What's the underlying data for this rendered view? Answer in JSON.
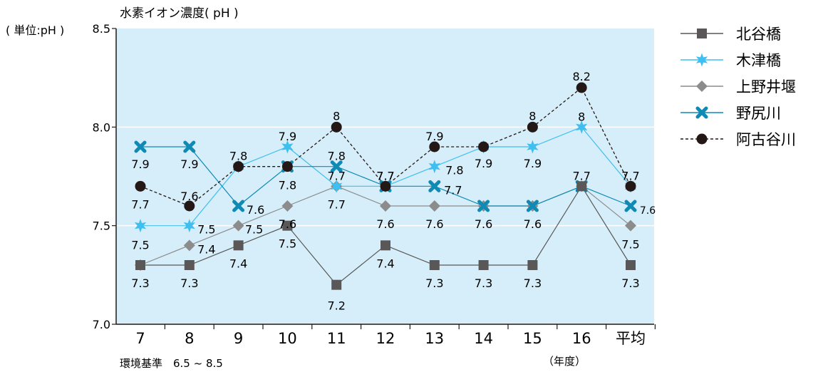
{
  "chart_data": {
    "type": "line",
    "title": "水素イオン濃度( pH )",
    "ylabel": "( 単位:pH )",
    "ylim": [
      7.0,
      8.5
    ],
    "y_ticks": [
      "7.0",
      "7.5",
      "8.0",
      "8.5"
    ],
    "categories": [
      "7",
      "8",
      "9",
      "10",
      "11",
      "12",
      "13",
      "14",
      "15",
      "16",
      "平均"
    ],
    "x_unit": "（年度）",
    "footnote": "環境基準　6.5 ~ 8.5",
    "legend_position": "right",
    "plot_background": "#d6eef9",
    "series": [
      {
        "name": "北谷橋",
        "marker": "square",
        "color": "#595757",
        "dashed": false,
        "values": [
          7.3,
          7.3,
          7.4,
          7.5,
          7.2,
          7.4,
          7.3,
          7.3,
          7.3,
          7.7,
          7.3
        ],
        "labels": [
          "7.3",
          "7.3",
          "7.4",
          "7.5",
          "7.2",
          "7.4",
          "7.3",
          "7.3",
          "7.3",
          "7.7",
          "7.3"
        ]
      },
      {
        "name": "木津橋",
        "marker": "star",
        "color": "#3fbfef",
        "dashed": false,
        "values": [
          7.5,
          7.5,
          7.8,
          7.9,
          7.7,
          7.7,
          7.8,
          7.9,
          7.9,
          8.0,
          7.7
        ],
        "labels": [
          "7.5",
          "7.5",
          "7.8",
          "7.9",
          "7.7",
          "7.7",
          "7.8",
          "7.9",
          "7.9",
          "8",
          "7.7"
        ]
      },
      {
        "name": "上野井堰",
        "marker": "diamond",
        "color": "#8c8c8c",
        "dashed": false,
        "values": [
          7.3,
          7.4,
          7.5,
          7.6,
          7.7,
          7.6,
          7.6,
          7.6,
          7.6,
          7.7,
          7.5
        ],
        "labels": [
          "",
          "7.4",
          "7.5",
          "7.6",
          "7.7",
          "7.6",
          "7.6",
          "7.6",
          "7.6",
          "",
          "7.5"
        ]
      },
      {
        "name": "野尻川",
        "marker": "cross",
        "color": "#0e8ab5",
        "dashed": false,
        "values": [
          7.9,
          7.9,
          7.6,
          7.8,
          7.8,
          7.7,
          7.7,
          7.6,
          7.6,
          7.7,
          7.6
        ],
        "labels": [
          "7.9",
          "7.9",
          "7.6",
          "7.8",
          "7.8",
          "7.7",
          "7.7",
          "",
          "",
          "",
          "7.6"
        ]
      },
      {
        "name": "阿古谷川",
        "marker": "circle",
        "color": "#231815",
        "dashed": true,
        "values": [
          7.7,
          7.6,
          7.8,
          7.8,
          8.0,
          7.7,
          7.9,
          7.9,
          8.0,
          8.2,
          7.7
        ],
        "labels": [
          "7.7",
          "7.6",
          "",
          "",
          "8",
          "",
          "7.9",
          "",
          "8",
          "8.2",
          ""
        ]
      }
    ]
  }
}
